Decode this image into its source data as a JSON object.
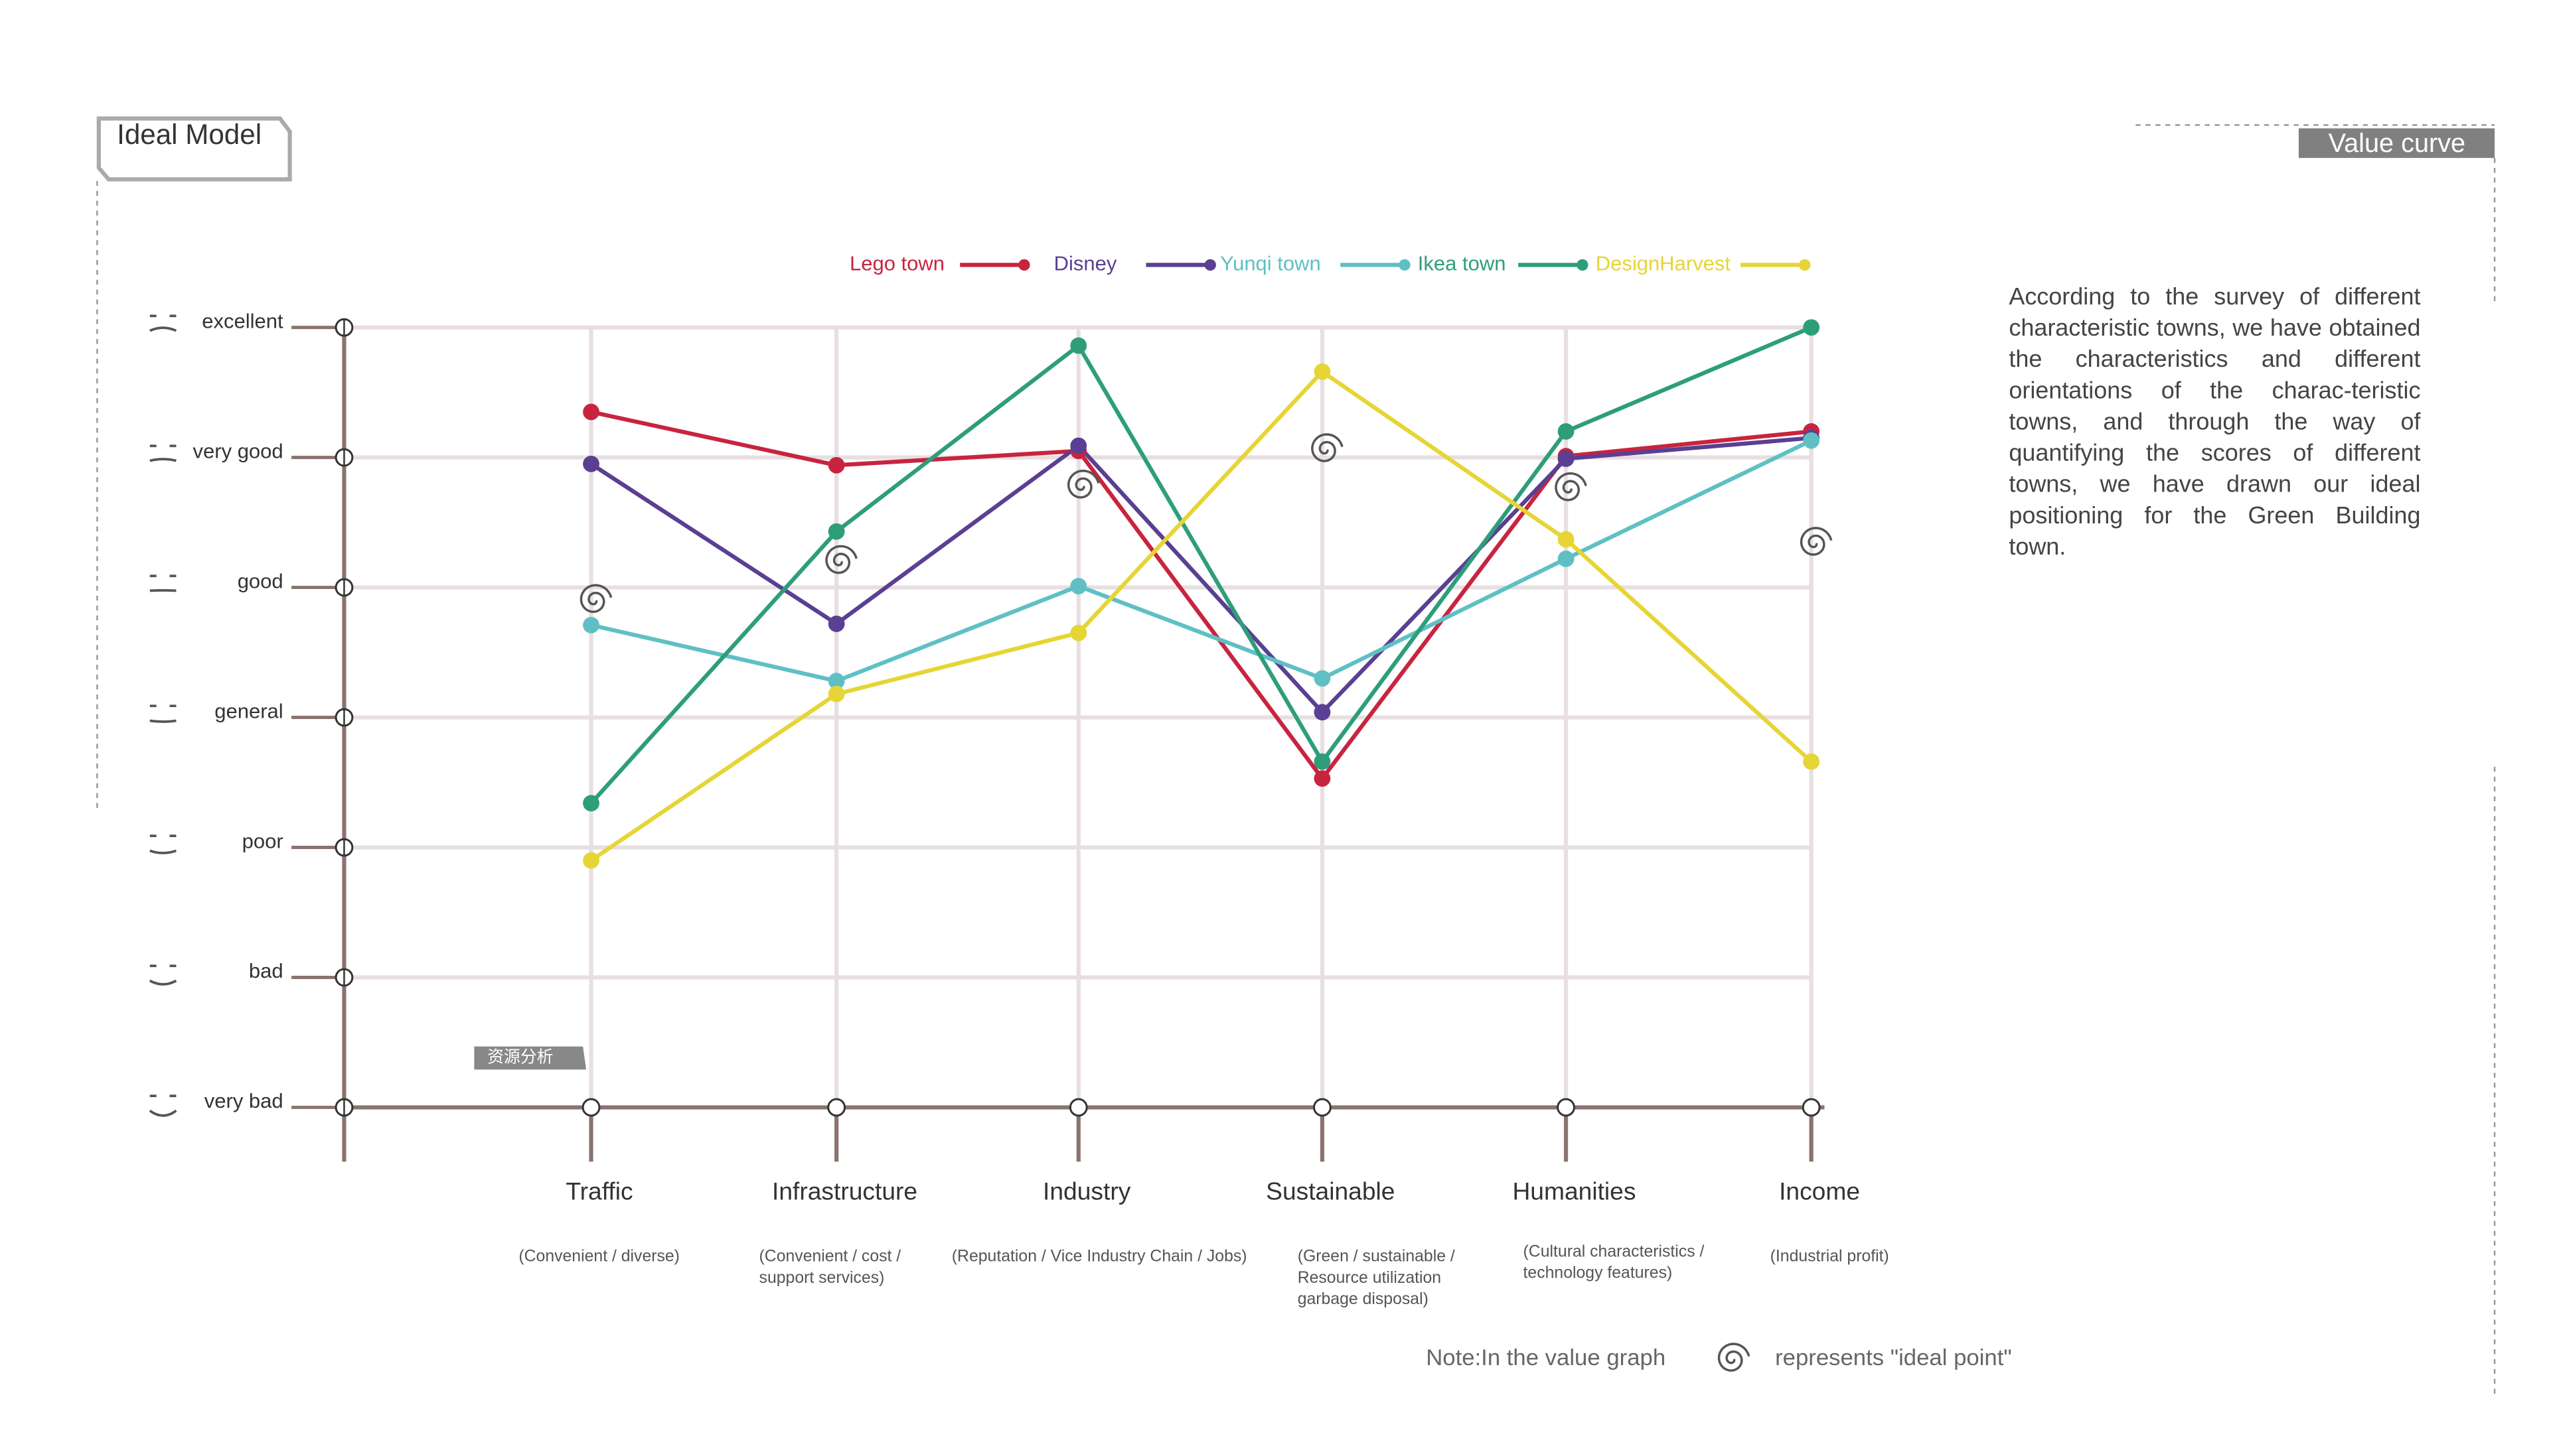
{
  "header": {
    "title": "Ideal Model",
    "section": "Value curve",
    "tag": "资源分析"
  },
  "description": "According to the survey of different characteristic towns, we have obtained the characteristics and different orientations of the charac-teristic towns, and through the way of quantifying the scores of different towns, we have drawn our ideal positioning for the Green Building town.",
  "chart_data": {
    "type": "line",
    "categories": [
      "Traffic",
      "Infrastructure",
      "Industry",
      "Sustainable",
      "Humanities",
      "Income"
    ],
    "category_notes": [
      [
        "(Convenient / diverse)"
      ],
      [
        "(Convenient / cost /",
        "support services)"
      ],
      [
        "(Reputation / Vice Industry Chain / Jobs)"
      ],
      [
        "(Green / sustainable /",
        "Resource utilization",
        "garbage disposal)"
      ],
      [
        "(Cultural characteristics /",
        "technology features)"
      ],
      [
        "(Industrial profit)"
      ]
    ],
    "series": [
      {
        "name": "Lego town",
        "color": "#c8243f",
        "values": [
          5.35,
          4.94,
          5.05,
          2.53,
          5.01,
          5.2
        ]
      },
      {
        "name": "Disney",
        "color": "#5a3f93",
        "values": [
          4.95,
          3.72,
          5.09,
          3.04,
          4.99,
          5.15
        ]
      },
      {
        "name": "Yunqi town",
        "color": "#5fc0c4",
        "values": [
          3.71,
          3.28,
          4.01,
          3.3,
          4.22,
          5.13
        ]
      },
      {
        "name": "Ikea town",
        "color": "#2e9e7a",
        "values": [
          2.34,
          4.43,
          5.86,
          2.66,
          5.2,
          6.0
        ]
      },
      {
        "name": "DesignHarvest",
        "color": "#e6d535",
        "values": [
          1.9,
          3.18,
          3.65,
          5.66,
          4.37,
          2.66
        ]
      }
    ],
    "ideal_points": [
      3.9,
      4.2,
      4.78,
      5.06,
      4.76,
      4.34
    ],
    "ylim": [
      0,
      6
    ],
    "yticks": [
      {
        "value": 0,
        "label": "very bad"
      },
      {
        "value": 1,
        "label": "bad"
      },
      {
        "value": 2,
        "label": "poor"
      },
      {
        "value": 3,
        "label": "general"
      },
      {
        "value": 4,
        "label": "good"
      },
      {
        "value": 5,
        "label": "very good"
      },
      {
        "value": 6,
        "label": "excellent"
      }
    ],
    "grid": true,
    "note": {
      "before": "Note:In the value graph",
      "after": "represents \"ideal point\""
    }
  }
}
